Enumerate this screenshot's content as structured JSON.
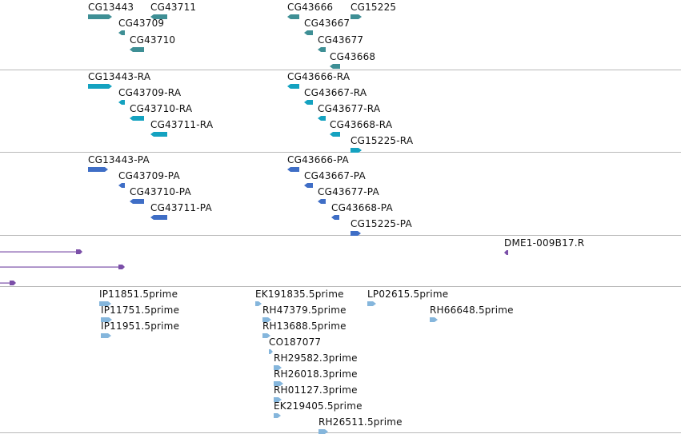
{
  "colors": {
    "gene": "#3e8f95",
    "transcript": "#14a2c0",
    "protein": "#3f6ec6",
    "bac_end": "#7b4fa8",
    "est": "#85b6dc",
    "divider": "#b9b9b9"
  },
  "tracks": {
    "genes": {
      "features": [
        {
          "label": "CG13443",
          "strand": "plus"
        },
        {
          "label": "CG43711",
          "strand": "minus"
        },
        {
          "label": "CG43709",
          "strand": "minus"
        },
        {
          "label": "CG43710",
          "strand": "minus"
        },
        {
          "label": "CG43666",
          "strand": "minus"
        },
        {
          "label": "CG15225",
          "strand": "plus"
        },
        {
          "label": "CG43667",
          "strand": "minus"
        },
        {
          "label": "CG43677",
          "strand": "minus"
        },
        {
          "label": "CG43668",
          "strand": "minus"
        }
      ]
    },
    "transcripts": {
      "features": [
        {
          "label": "CG13443-RA",
          "strand": "plus"
        },
        {
          "label": "CG43709-RA",
          "strand": "minus"
        },
        {
          "label": "CG43710-RA",
          "strand": "minus"
        },
        {
          "label": "CG43711-RA",
          "strand": "minus"
        },
        {
          "label": "CG43666-RA",
          "strand": "minus"
        },
        {
          "label": "CG43667-RA",
          "strand": "minus"
        },
        {
          "label": "CG43677-RA",
          "strand": "minus"
        },
        {
          "label": "CG43668-RA",
          "strand": "minus"
        },
        {
          "label": "CG15225-RA",
          "strand": "plus"
        }
      ]
    },
    "proteins": {
      "features": [
        {
          "label": "CG13443-PA",
          "strand": "plus"
        },
        {
          "label": "CG43709-PA",
          "strand": "minus"
        },
        {
          "label": "CG43710-PA",
          "strand": "minus"
        },
        {
          "label": "CG43711-PA",
          "strand": "minus"
        },
        {
          "label": "CG43666-PA",
          "strand": "minus"
        },
        {
          "label": "CG43667-PA",
          "strand": "minus"
        },
        {
          "label": "CG43677-PA",
          "strand": "minus"
        },
        {
          "label": "CG43668-PA",
          "strand": "minus"
        },
        {
          "label": "CG15225-PA",
          "strand": "plus"
        }
      ]
    },
    "bac_ends": {
      "features": [
        {
          "label": "",
          "strand": "plus"
        },
        {
          "label": "",
          "strand": "plus"
        },
        {
          "label": "",
          "strand": "plus"
        },
        {
          "label": "DME1-009B17.R",
          "strand": "minus"
        }
      ]
    },
    "ests": {
      "features": [
        {
          "label": "IP11851.5prime",
          "strand": "plus"
        },
        {
          "label": "IP11751.5prime",
          "strand": "plus"
        },
        {
          "label": "IP11951.5prime",
          "strand": "plus"
        },
        {
          "label": "EK191835.5prime",
          "strand": "plus"
        },
        {
          "label": "RH47379.5prime",
          "strand": "plus"
        },
        {
          "label": "RH13688.5prime",
          "strand": "plus"
        },
        {
          "label": "CO187077",
          "strand": "plus"
        },
        {
          "label": "RH29582.3prime",
          "strand": "plus"
        },
        {
          "label": "RH26018.3prime",
          "strand": "plus"
        },
        {
          "label": "RH01127.3prime",
          "strand": "plus"
        },
        {
          "label": "EK219405.5prime",
          "strand": "plus"
        },
        {
          "label": "RH26511.5prime",
          "strand": "plus"
        },
        {
          "label": "LP02615.5prime",
          "strand": "plus"
        },
        {
          "label": "RH66648.5prime",
          "strand": "plus"
        }
      ]
    }
  }
}
